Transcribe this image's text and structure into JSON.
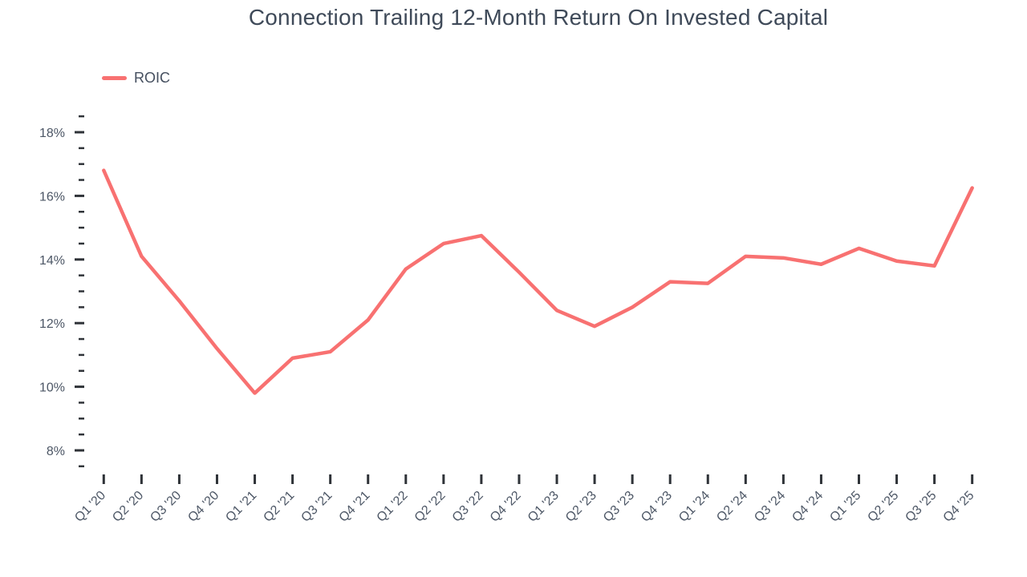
{
  "page_title": "Connection Trailing 12-Month Return On Invested Capital",
  "legend": {
    "items": [
      {
        "label": "ROIC",
        "color": "#F87171"
      }
    ]
  },
  "colors": {
    "line": "#F87171",
    "title_text": "#3F4A59",
    "axis_text": "#4D5766",
    "tick": "#2F3338"
  },
  "chart_data": {
    "type": "line",
    "title": "Connection Trailing 12-Month Return On Invested Capital",
    "categories": [
      "Q1 '20",
      "Q2 '20",
      "Q3 '20",
      "Q4 '20",
      "Q1 '21",
      "Q2 '21",
      "Q3 '21",
      "Q4 '21",
      "Q1 '22",
      "Q2 '22",
      "Q3 '22",
      "Q4 '22",
      "Q1 '23",
      "Q2 '23",
      "Q3 '23",
      "Q4 '23",
      "Q1 '24",
      "Q2 '24",
      "Q3 '24",
      "Q4 '24",
      "Q1 '25",
      "Q2 '25",
      "Q3 '25",
      "Q4 '25"
    ],
    "series": [
      {
        "name": "ROIC",
        "color": "#F87171",
        "values": [
          16.8,
          14.1,
          12.7,
          11.2,
          9.8,
          10.9,
          11.1,
          12.1,
          13.7,
          14.5,
          14.75,
          13.6,
          12.4,
          11.9,
          12.5,
          13.3,
          13.25,
          14.1,
          14.05,
          13.85,
          14.35,
          13.95,
          13.8,
          16.25
        ]
      }
    ],
    "xlabel": "",
    "ylabel": "",
    "y_axis": {
      "unit": "%",
      "labeled_ticks": [
        8,
        10,
        12,
        14,
        16,
        18
      ],
      "minor_tick_step": 0.5,
      "range": [
        7.5,
        18.5
      ],
      "label_format": "{v}%"
    },
    "x_axis": {
      "tick_every": 1,
      "label_rotation_deg": -45
    },
    "legend_position": "top-left",
    "grid": false
  }
}
